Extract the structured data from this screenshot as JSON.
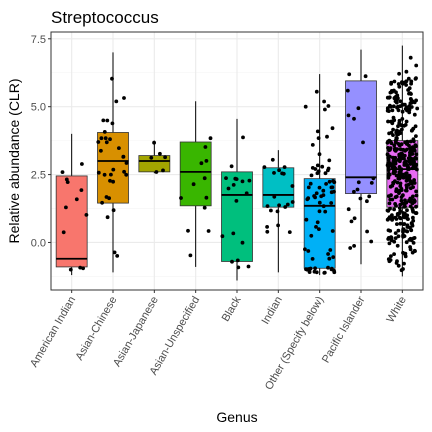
{
  "chart_data": {
    "type": "boxplot",
    "title": "Streptococcus",
    "xlabel": "Genus",
    "ylabel": "Relative abundance (CLR)",
    "ylim": [
      -1.75,
      7.75
    ],
    "yticks": [
      0.0,
      2.5,
      5.0,
      7.5
    ],
    "ytick_labels": [
      "0.0",
      "2.5",
      "5.0",
      "7.5"
    ],
    "grid": true,
    "categories": [
      {
        "label": "American Indian",
        "color": "#F8766D",
        "q1": -0.9,
        "median": -0.6,
        "q3": 2.45,
        "whisker_low": -1.2,
        "whisker_high": 4.0,
        "n_points": 12
      },
      {
        "label": "Asian-Chinese",
        "color": "#D89000",
        "q1": 1.45,
        "median": 3.0,
        "q3": 4.05,
        "whisker_low": -1.1,
        "whisker_high": 7.0,
        "n_points": 32
      },
      {
        "label": "Asian-Japanese",
        "color": "#A3A500",
        "q1": 2.6,
        "median": 3.0,
        "q3": 3.2,
        "whisker_low": 2.55,
        "whisker_high": 3.75,
        "n_points": 6
      },
      {
        "label": "Asian-Unspecified",
        "color": "#39B600",
        "q1": 1.35,
        "median": 2.6,
        "q3": 3.7,
        "whisker_low": -0.9,
        "whisker_high": 5.2,
        "n_points": 12
      },
      {
        "label": "Black",
        "color": "#00BF7D",
        "q1": -0.7,
        "median": 1.75,
        "q3": 2.6,
        "whisker_low": -1.4,
        "whisker_high": 4.55,
        "n_points": 18
      },
      {
        "label": "Indian",
        "color": "#00BFC4",
        "q1": 1.3,
        "median": 1.75,
        "q3": 2.75,
        "whisker_low": -1.1,
        "whisker_high": 3.4,
        "n_points": 20
      },
      {
        "label": "Other (Specify below)",
        "color": "#00B0F6",
        "q1": -0.95,
        "median": 1.35,
        "q3": 2.35,
        "whisker_low": -1.2,
        "whisker_high": 6.2,
        "n_points": 75
      },
      {
        "label": "Pacific Islander",
        "color": "#9590FF",
        "q1": 1.8,
        "median": 2.4,
        "q3": 5.95,
        "whisker_low": -0.8,
        "whisker_high": 7.1,
        "n_points": 22
      },
      {
        "label": "White",
        "color": "#E76BF3",
        "q1": 1.3,
        "median": 2.7,
        "q3": 3.75,
        "whisker_low": -1.25,
        "whisker_high": 7.25,
        "n_points": 420
      }
    ],
    "fill_order_note_colors": [
      "#F8766D",
      "#D89000",
      "#A3A500",
      "#39B600",
      "#00BF7D",
      "#00BFC4",
      "#00B0F6",
      "#9590FF",
      "#E76BF3"
    ]
  },
  "style": {
    "panel_border": "#333333",
    "grid_major": "#ebebeb",
    "grid_minor": "#f5f5f5",
    "point_color": "#000000",
    "line_color": "#000000"
  }
}
